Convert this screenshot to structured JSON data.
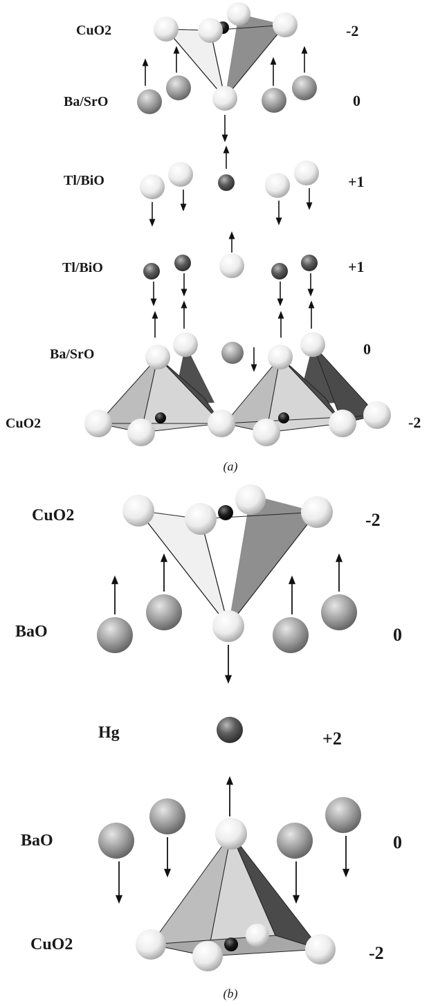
{
  "panel_a": {
    "caption": "(a)",
    "layers": [
      {
        "name": "CuO2",
        "charge": "-2"
      },
      {
        "name": "Ba/SrO",
        "charge": "0"
      },
      {
        "name": "Tl/BiO",
        "charge": "+1"
      },
      {
        "name": "Tl/BiO",
        "charge": "+1"
      },
      {
        "name": "Ba/SrO",
        "charge": "0"
      },
      {
        "name": "CuO2",
        "charge": "-2"
      }
    ]
  },
  "panel_b": {
    "caption": "(b)",
    "layers": [
      {
        "name": "CuO2",
        "charge": "-2"
      },
      {
        "name": "BaO",
        "charge": "0"
      },
      {
        "name": "Hg",
        "charge": "+2"
      },
      {
        "name": "BaO",
        "charge": "0"
      },
      {
        "name": "CuO2",
        "charge": "-2"
      }
    ]
  },
  "colors": {
    "oxygen_atom": "#f4f4f4",
    "ba_atom": "#9a9a9a",
    "metal_atom": "#555555",
    "cu_atom": "#111111",
    "face_light": "#b8b8b8",
    "face_mid": "#8a8a8a",
    "face_dark": "#4a4a4a"
  }
}
